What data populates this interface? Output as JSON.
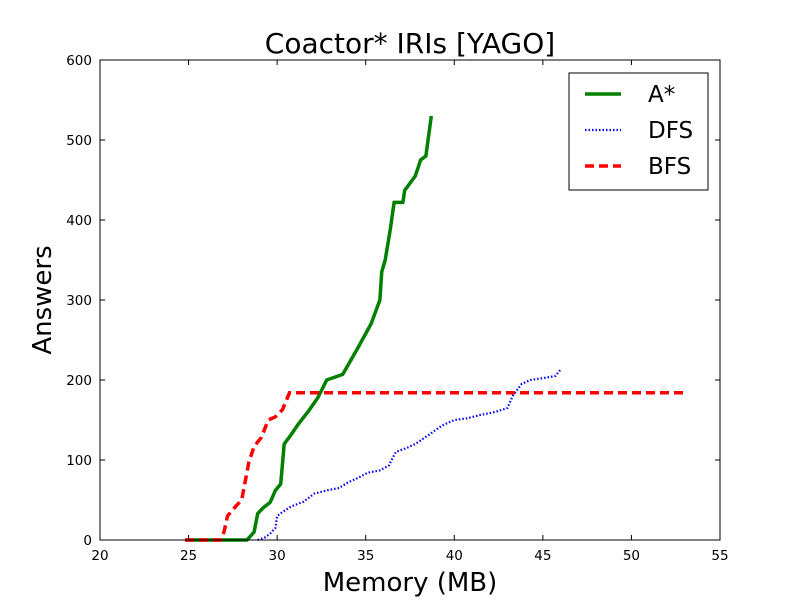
{
  "chart_data": {
    "type": "line",
    "title": "Coactor* IRIs [YAGO]",
    "xlabel": "Memory (MB)",
    "ylabel": "Answers",
    "xlim": [
      20,
      55
    ],
    "ylim": [
      0,
      600
    ],
    "xticks": [
      20,
      25,
      30,
      35,
      40,
      45,
      50,
      55
    ],
    "yticks": [
      0,
      100,
      200,
      300,
      400,
      500,
      600
    ],
    "grid": false,
    "legend_position": "top-right",
    "series": [
      {
        "name": "A*",
        "color": "#008000",
        "style": "solid",
        "points": [
          [
            24.8,
            0
          ],
          [
            28.3,
            0
          ],
          [
            28.7,
            10
          ],
          [
            28.9,
            33
          ],
          [
            29.2,
            40
          ],
          [
            29.6,
            47
          ],
          [
            29.9,
            62
          ],
          [
            30.2,
            70
          ],
          [
            30.4,
            120
          ],
          [
            30.8,
            132
          ],
          [
            31.2,
            145
          ],
          [
            31.8,
            162
          ],
          [
            32.3,
            178
          ],
          [
            32.8,
            200
          ],
          [
            33.7,
            207
          ],
          [
            34.5,
            238
          ],
          [
            35.3,
            270
          ],
          [
            35.8,
            300
          ],
          [
            35.9,
            335
          ],
          [
            36.1,
            350
          ],
          [
            36.4,
            390
          ],
          [
            36.6,
            422
          ],
          [
            37.1,
            422
          ],
          [
            37.2,
            437
          ],
          [
            37.8,
            455
          ],
          [
            38.1,
            475
          ],
          [
            38.4,
            480
          ],
          [
            38.7,
            530
          ]
        ]
      },
      {
        "name": "DFS",
        "color": "#0000ff",
        "style": "dotted",
        "points": [
          [
            28.9,
            0
          ],
          [
            29.3,
            3
          ],
          [
            29.6,
            8
          ],
          [
            29.9,
            15
          ],
          [
            30.0,
            30
          ],
          [
            30.3,
            35
          ],
          [
            30.8,
            42
          ],
          [
            31.5,
            48
          ],
          [
            32.1,
            58
          ],
          [
            32.8,
            62
          ],
          [
            33.5,
            65
          ],
          [
            34.0,
            72
          ],
          [
            34.6,
            78
          ],
          [
            35.1,
            84
          ],
          [
            35.8,
            87
          ],
          [
            36.3,
            93
          ],
          [
            36.7,
            110
          ],
          [
            37.3,
            115
          ],
          [
            37.8,
            120
          ],
          [
            38.6,
            132
          ],
          [
            39.3,
            143
          ],
          [
            40.0,
            150
          ],
          [
            40.7,
            152
          ],
          [
            41.4,
            156
          ],
          [
            42.3,
            160
          ],
          [
            43.0,
            165
          ],
          [
            43.3,
            180
          ],
          [
            43.8,
            195
          ],
          [
            44.3,
            200
          ],
          [
            45.2,
            203
          ],
          [
            45.7,
            205
          ],
          [
            46.0,
            213
          ]
        ]
      },
      {
        "name": "BFS",
        "color": "#ff0000",
        "style": "dashed",
        "points": [
          [
            24.8,
            0
          ],
          [
            26.8,
            0
          ],
          [
            27.0,
            10
          ],
          [
            27.2,
            30
          ],
          [
            27.7,
            43
          ],
          [
            28.0,
            50
          ],
          [
            28.4,
            97
          ],
          [
            28.7,
            117
          ],
          [
            29.1,
            128
          ],
          [
            29.5,
            150
          ],
          [
            29.9,
            154
          ],
          [
            30.3,
            163
          ],
          [
            30.7,
            184
          ],
          [
            53.0,
            184
          ]
        ]
      }
    ]
  }
}
